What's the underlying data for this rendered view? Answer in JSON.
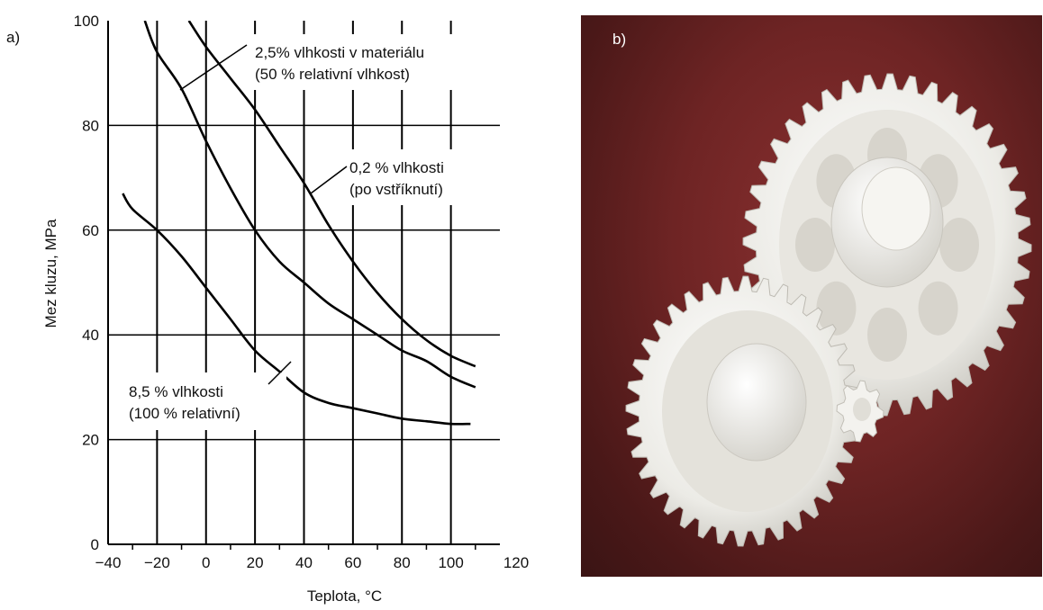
{
  "panel_a_label": "a)",
  "panel_b_label": "b)",
  "chart_data": {
    "type": "line",
    "xlabel": "Teplota, °C",
    "ylabel": "Mez kluzu, MPa",
    "xlim": [
      -40,
      120
    ],
    "ylim": [
      0,
      100
    ],
    "x_ticks": [
      "−40",
      "−20",
      "0",
      "20",
      "40",
      "60",
      "80",
      "100",
      "120"
    ],
    "y_ticks": [
      "0",
      "20",
      "40",
      "60",
      "80",
      "100"
    ],
    "grid": true,
    "series": [
      {
        "name": "0,2 % vlhkosti (po vstříknutí)",
        "points": [
          [
            -7,
            100
          ],
          [
            0,
            95
          ],
          [
            10,
            89
          ],
          [
            20,
            83
          ],
          [
            30,
            76
          ],
          [
            40,
            69
          ],
          [
            50,
            61
          ],
          [
            60,
            54
          ],
          [
            70,
            48
          ],
          [
            80,
            43
          ],
          [
            90,
            39
          ],
          [
            100,
            36
          ],
          [
            110,
            34
          ]
        ]
      },
      {
        "name": "2,5% vlhkosti v materiálu (50 % relativní vlhkost)",
        "points": [
          [
            -25,
            100
          ],
          [
            -20,
            94
          ],
          [
            -10,
            87
          ],
          [
            0,
            77
          ],
          [
            10,
            68
          ],
          [
            20,
            60
          ],
          [
            30,
            54
          ],
          [
            40,
            50
          ],
          [
            50,
            46
          ],
          [
            60,
            43
          ],
          [
            70,
            40
          ],
          [
            80,
            37
          ],
          [
            90,
            35
          ],
          [
            100,
            32
          ],
          [
            110,
            30
          ]
        ]
      },
      {
        "name": "8,5 % vlhkosti (100 % relativní)",
        "points": [
          [
            -34,
            67
          ],
          [
            -30,
            64
          ],
          [
            -20,
            60
          ],
          [
            -10,
            55
          ],
          [
            0,
            49
          ],
          [
            10,
            43
          ],
          [
            20,
            37
          ],
          [
            30,
            33
          ],
          [
            40,
            29
          ],
          [
            50,
            27
          ],
          [
            60,
            26
          ],
          [
            70,
            25
          ],
          [
            80,
            24
          ],
          [
            90,
            23.5
          ],
          [
            100,
            23
          ],
          [
            108,
            23
          ]
        ]
      }
    ],
    "annotations": [
      {
        "lines": [
          "2,5% vlhkosti v materiálu",
          "(50 % relativní vlhkost)"
        ]
      },
      {
        "lines": [
          "0,2 % vlhkosti",
          "(po vstříknutí)"
        ]
      },
      {
        "lines": [
          "8,5 % vlhkosti",
          "(100 % relativní)"
        ]
      }
    ]
  }
}
